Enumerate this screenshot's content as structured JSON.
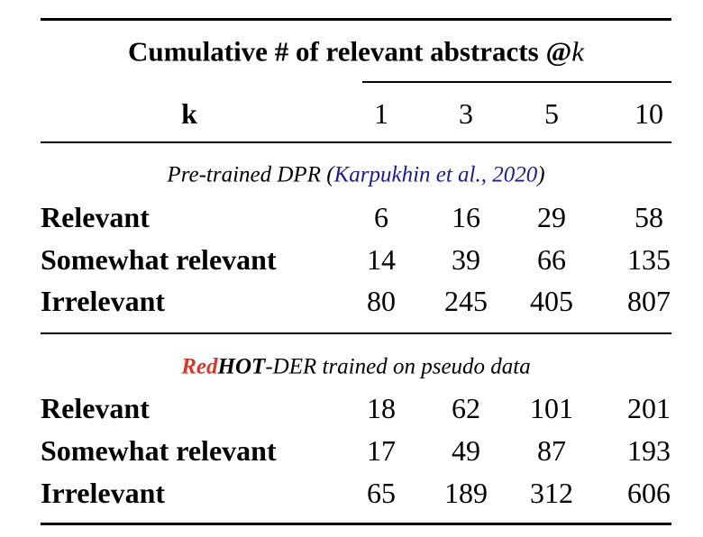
{
  "table": {
    "title": "Cumulative # of relevant abstracts @",
    "title_var": "k",
    "header": [
      "k",
      "1",
      "3",
      "5",
      "10"
    ],
    "sections": [
      {
        "caption": {
          "before": "Pre-trained DPR (",
          "cite": "Karpukhin et al., 2020",
          "after": ")"
        },
        "rows": [
          [
            "Relevant",
            6,
            16,
            29,
            58
          ],
          [
            "Somewhat relevant",
            14,
            39,
            66,
            135
          ],
          [
            "Irrelevant",
            80,
            245,
            405,
            807
          ]
        ]
      },
      {
        "caption": {
          "red": "Red",
          "bold": "HOT",
          "rest": "-DER trained on pseudo data"
        },
        "rows": [
          [
            "Relevant",
            18,
            62,
            101,
            201
          ],
          [
            "Somewhat relevant",
            17,
            49,
            87,
            193
          ],
          [
            "Irrelevant",
            65,
            189,
            312,
            606
          ]
        ]
      }
    ]
  }
}
